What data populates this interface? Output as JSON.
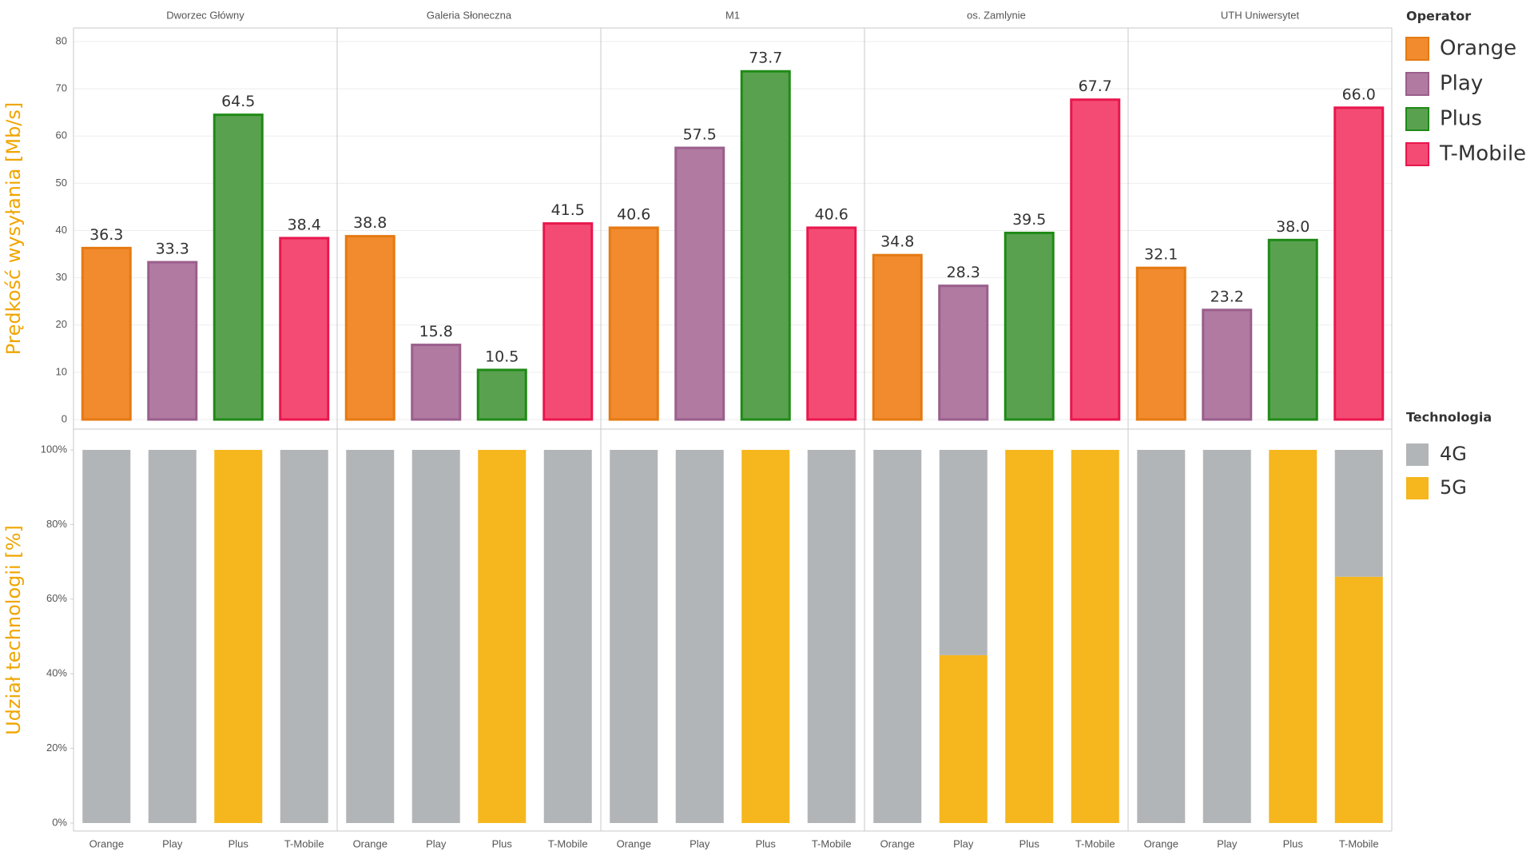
{
  "chart_data": [
    {
      "type": "bar",
      "y_label": "Prędkość wysyłania [Mb/s]",
      "facets": [
        "Dworzec Główny",
        "Galeria Słoneczna",
        "M1",
        "os. Zamlynie",
        "UTH Uniwersytet"
      ],
      "categories": [
        "Orange",
        "Play",
        "Plus",
        "T-Mobile"
      ],
      "colors": [
        "#f28a2e",
        "#b07aa1",
        "#59a14f",
        "#f44b74"
      ],
      "stroke_colors": [
        "#e57a12",
        "#9a5f8c",
        "#1f8a17",
        "#e8174d"
      ],
      "legend_title": "Operator",
      "values": [
        [
          36.3,
          33.3,
          64.5,
          38.4
        ],
        [
          38.8,
          15.8,
          10.5,
          41.5
        ],
        [
          40.6,
          57.5,
          73.7,
          40.6
        ],
        [
          34.8,
          28.3,
          39.5,
          67.7
        ],
        [
          32.1,
          23.2,
          38.0,
          66.0
        ]
      ],
      "value_labels": [
        [
          "36.3",
          "33.3",
          "64.5",
          "38.4"
        ],
        [
          "38.8",
          "15.8",
          "10.5",
          "41.5"
        ],
        [
          "40.6",
          "57.5",
          "73.7",
          "40.6"
        ],
        [
          "34.8",
          "28.3",
          "39.5",
          "67.7"
        ],
        [
          "32.1",
          "23.2",
          "38.0",
          "66.0"
        ]
      ],
      "ylim": [
        0,
        80
      ],
      "yticks": [
        0,
        10,
        20,
        30,
        40,
        50,
        60,
        70,
        80
      ],
      "grid": true,
      "legend": "right"
    },
    {
      "type": "stacked_bar",
      "y_label": "Udział technologii [%]",
      "categories": [
        "Orange",
        "Play",
        "Plus",
        "T-Mobile"
      ],
      "legend_title": "Technologia",
      "series": [
        {
          "name": "4G",
          "color": "#b2b5b7",
          "values": [
            [
              100,
              100,
              0,
              100
            ],
            [
              100,
              100,
              0,
              100
            ],
            [
              100,
              100,
              0,
              100
            ],
            [
              100,
              55,
              0,
              0
            ],
            [
              100,
              100,
              0,
              34
            ]
          ]
        },
        {
          "name": "5G",
          "color": "#f6b61d",
          "values": [
            [
              0,
              0,
              100,
              0
            ],
            [
              0,
              0,
              100,
              0
            ],
            [
              0,
              0,
              100,
              0
            ],
            [
              0,
              45,
              100,
              100
            ],
            [
              0,
              0,
              100,
              66
            ]
          ]
        }
      ],
      "stack_order": [
        "5G",
        "4G"
      ],
      "ylim": [
        0,
        100
      ],
      "yticks": [
        {
          "value": 0,
          "label": "0%"
        },
        {
          "value": 20,
          "label": "20%"
        },
        {
          "value": 40,
          "label": "40%"
        },
        {
          "value": 60,
          "label": "60%"
        },
        {
          "value": 80,
          "label": "80%"
        },
        {
          "value": 100,
          "label": "100%"
        }
      ],
      "grid": false,
      "legend": "right"
    }
  ]
}
